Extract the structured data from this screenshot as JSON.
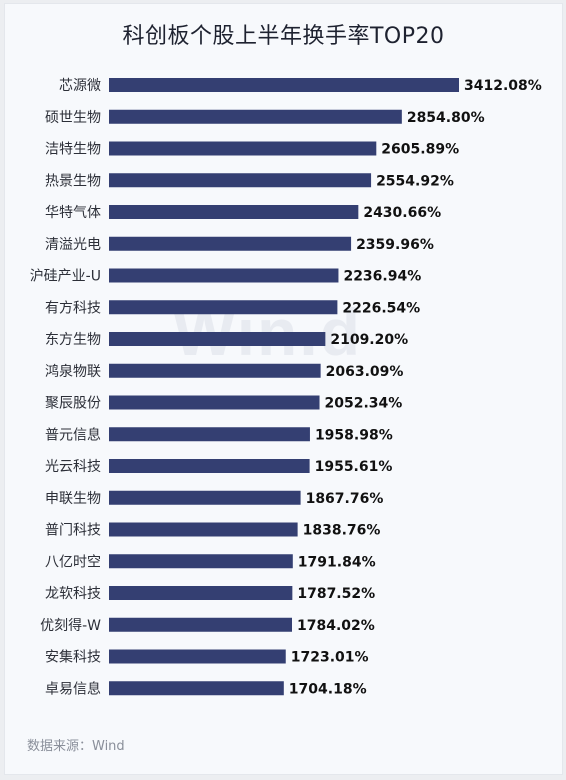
{
  "chart_data": {
    "type": "bar",
    "orientation": "horizontal",
    "title": "科创板个股上半年换手率TOP20",
    "categories": [
      "芯源微",
      "硕世生物",
      "洁特生物",
      "热景生物",
      "华特气体",
      "清溢光电",
      "沪硅产业-U",
      "有方科技",
      "东方生物",
      "鸿泉物联",
      "聚辰股份",
      "普元信息",
      "光云科技",
      "申联生物",
      "普门科技",
      "八亿时空",
      "龙软科技",
      "优刻得-W",
      "安集科技",
      "卓易信息"
    ],
    "values": [
      3412.08,
      2854.8,
      2605.89,
      2554.92,
      2430.66,
      2359.96,
      2236.94,
      2226.54,
      2109.2,
      2063.09,
      2052.34,
      1958.98,
      1955.61,
      1867.76,
      1838.76,
      1791.84,
      1787.52,
      1784.02,
      1723.01,
      1704.18
    ],
    "labels": [
      "3412.08%",
      "2854.80%",
      "2605.89%",
      "2554.92%",
      "2430.66%",
      "2359.96%",
      "2236.94%",
      "2226.54%",
      "2109.20%",
      "2063.09%",
      "2052.34%",
      "1958.98%",
      "1955.61%",
      "1867.76%",
      "1838.76%",
      "1791.84%",
      "1787.52%",
      "1784.02%",
      "1723.01%",
      "1704.18%"
    ],
    "bar_color": "#343f72",
    "xlim": [
      0,
      3412.08
    ],
    "grid": false,
    "legend": "none"
  },
  "watermark": "Win.d",
  "source": "数据来源：Wind"
}
